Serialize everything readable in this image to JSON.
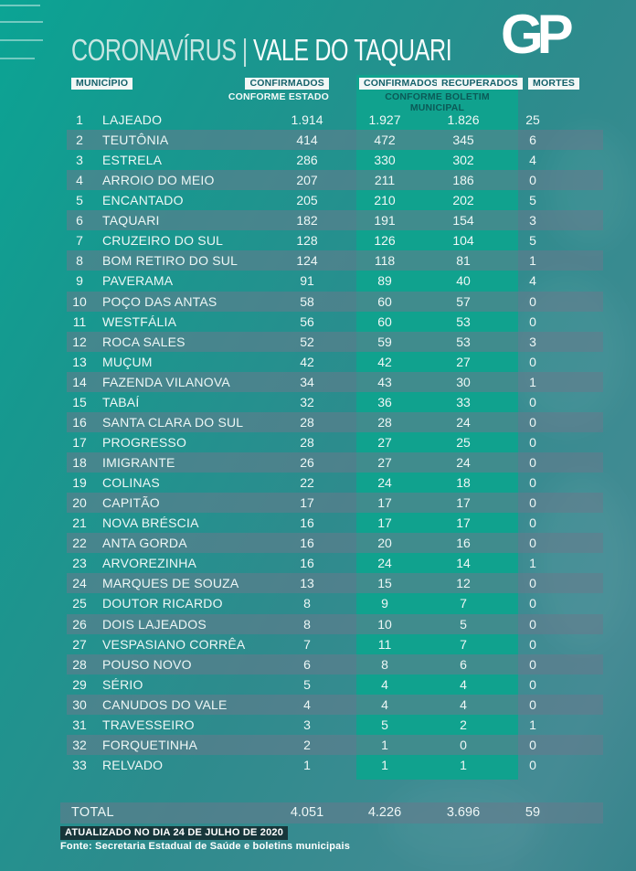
{
  "logo_text": "GP",
  "chart_data": {
    "type": "table",
    "title_parts": {
      "left": "CORONAVÍRUS",
      "separator": "|",
      "right": "VALE DO TAQUARI"
    },
    "columns": {
      "municipio": "MUNICÍPIO",
      "confirmados_estado": "CONFIRMADOS",
      "confirmados_estado_sub": "CONFORME ESTADO",
      "confirmados_municipal": "CONFIRMADOS",
      "confirmados_municipal_sub": "CONFORME BOLETIM MUNICIPAL",
      "recuperados": "RECUPERADOS",
      "mortes": "MORTES"
    },
    "rows": [
      {
        "rank": "1",
        "municipio": "LAJEADO",
        "confirmados_estado": "1.914",
        "confirmados_municipal": "1.927",
        "recuperados": "1.826",
        "mortes": "25"
      },
      {
        "rank": "2",
        "municipio": "TEUTÔNIA",
        "confirmados_estado": "414",
        "confirmados_municipal": "472",
        "recuperados": "345",
        "mortes": "6"
      },
      {
        "rank": "3",
        "municipio": "ESTRELA",
        "confirmados_estado": "286",
        "confirmados_municipal": "330",
        "recuperados": "302",
        "mortes": "4"
      },
      {
        "rank": "4",
        "municipio": "ARROIO DO MEIO",
        "confirmados_estado": "207",
        "confirmados_municipal": "211",
        "recuperados": "186",
        "mortes": "0"
      },
      {
        "rank": "5",
        "municipio": "ENCANTADO",
        "confirmados_estado": "205",
        "confirmados_municipal": "210",
        "recuperados": "202",
        "mortes": "5"
      },
      {
        "rank": "6",
        "municipio": "TAQUARI",
        "confirmados_estado": "182",
        "confirmados_municipal": "191",
        "recuperados": "154",
        "mortes": "3"
      },
      {
        "rank": "7",
        "municipio": "CRUZEIRO DO SUL",
        "confirmados_estado": "128",
        "confirmados_municipal": "126",
        "recuperados": "104",
        "mortes": "5"
      },
      {
        "rank": "8",
        "municipio": "BOM RETIRO DO SUL",
        "confirmados_estado": "124",
        "confirmados_municipal": "118",
        "recuperados": "81",
        "mortes": "1"
      },
      {
        "rank": "9",
        "municipio": "PAVERAMA",
        "confirmados_estado": "91",
        "confirmados_municipal": "89",
        "recuperados": "40",
        "mortes": "4"
      },
      {
        "rank": "10",
        "municipio": "POÇO DAS ANTAS",
        "confirmados_estado": "58",
        "confirmados_municipal": "60",
        "recuperados": "57",
        "mortes": "0"
      },
      {
        "rank": "11",
        "municipio": "WESTFÁLIA",
        "confirmados_estado": "56",
        "confirmados_municipal": "60",
        "recuperados": "53",
        "mortes": "0"
      },
      {
        "rank": "12",
        "municipio": "ROCA SALES",
        "confirmados_estado": "52",
        "confirmados_municipal": "59",
        "recuperados": "53",
        "mortes": "3"
      },
      {
        "rank": "13",
        "municipio": "MUÇUM",
        "confirmados_estado": "42",
        "confirmados_municipal": "42",
        "recuperados": "27",
        "mortes": "0"
      },
      {
        "rank": "14",
        "municipio": "FAZENDA VILANOVA",
        "confirmados_estado": "34",
        "confirmados_municipal": "43",
        "recuperados": "30",
        "mortes": "1"
      },
      {
        "rank": "15",
        "municipio": "TABAÍ",
        "confirmados_estado": "32",
        "confirmados_municipal": "36",
        "recuperados": "33",
        "mortes": "0"
      },
      {
        "rank": "16",
        "municipio": "SANTA CLARA DO SUL",
        "confirmados_estado": "28",
        "confirmados_municipal": "28",
        "recuperados": "24",
        "mortes": "0"
      },
      {
        "rank": "17",
        "municipio": "PROGRESSO",
        "confirmados_estado": "28",
        "confirmados_municipal": "27",
        "recuperados": "25",
        "mortes": "0"
      },
      {
        "rank": "18",
        "municipio": "IMIGRANTE",
        "confirmados_estado": "26",
        "confirmados_municipal": "27",
        "recuperados": "24",
        "mortes": "0"
      },
      {
        "rank": "19",
        "municipio": "COLINAS",
        "confirmados_estado": "22",
        "confirmados_municipal": "24",
        "recuperados": "18",
        "mortes": "0"
      },
      {
        "rank": "20",
        "municipio": "CAPITÃO",
        "confirmados_estado": "17",
        "confirmados_municipal": "17",
        "recuperados": "17",
        "mortes": "0"
      },
      {
        "rank": "21",
        "municipio": "NOVA BRÉSCIA",
        "confirmados_estado": "16",
        "confirmados_municipal": "17",
        "recuperados": "17",
        "mortes": "0"
      },
      {
        "rank": "22",
        "municipio": "ANTA GORDA",
        "confirmados_estado": "16",
        "confirmados_municipal": "20",
        "recuperados": "16",
        "mortes": "0"
      },
      {
        "rank": "23",
        "municipio": "ARVOREZINHA",
        "confirmados_estado": "16",
        "confirmados_municipal": "24",
        "recuperados": "14",
        "mortes": "1"
      },
      {
        "rank": "24",
        "municipio": "MARQUES DE SOUZA",
        "confirmados_estado": "13",
        "confirmados_municipal": "15",
        "recuperados": "12",
        "mortes": "0"
      },
      {
        "rank": "25",
        "municipio": "DOUTOR RICARDO",
        "confirmados_estado": "8",
        "confirmados_municipal": "9",
        "recuperados": "7",
        "mortes": "0"
      },
      {
        "rank": "26",
        "municipio": "DOIS LAJEADOS",
        "confirmados_estado": "8",
        "confirmados_municipal": "10",
        "recuperados": "5",
        "mortes": "0"
      },
      {
        "rank": "27",
        "municipio": "VESPASIANO CORRÊA",
        "confirmados_estado": "7",
        "confirmados_municipal": "11",
        "recuperados": "7",
        "mortes": "0"
      },
      {
        "rank": "28",
        "municipio": "POUSO NOVO",
        "confirmados_estado": "6",
        "confirmados_municipal": "8",
        "recuperados": "6",
        "mortes": "0"
      },
      {
        "rank": "29",
        "municipio": "SÉRIO",
        "confirmados_estado": "5",
        "confirmados_municipal": "4",
        "recuperados": "4",
        "mortes": "0"
      },
      {
        "rank": "30",
        "municipio": "CANUDOS DO VALE",
        "confirmados_estado": "4",
        "confirmados_municipal": "4",
        "recuperados": "4",
        "mortes": "0"
      },
      {
        "rank": "31",
        "municipio": "TRAVESSEIRO",
        "confirmados_estado": "3",
        "confirmados_municipal": "5",
        "recuperados": "2",
        "mortes": "1"
      },
      {
        "rank": "32",
        "municipio": "FORQUETINHA",
        "confirmados_estado": "2",
        "confirmados_municipal": "1",
        "recuperados": "0",
        "mortes": "0"
      },
      {
        "rank": "33",
        "municipio": "RELVADO",
        "confirmados_estado": "1",
        "confirmados_municipal": "1",
        "recuperados": "1",
        "mortes": "0"
      }
    ],
    "total": {
      "label": "TOTAL",
      "confirmados_estado": "4.051",
      "confirmados_municipal": "4.226",
      "recuperados": "3.696",
      "mortes": "59"
    }
  },
  "footer": {
    "updated": "ATUALIZADO NO DIA 24 DE JULHO DE 2020",
    "source": "Fonte: Secretaria Estadual de Saúde e boletins municipais"
  },
  "colors": {
    "background_top_left": "#0ba494",
    "background_bottom_right": "#37848c",
    "band_green": "#10a28e",
    "row_stripe": "rgba(104,122,140,0.55)",
    "header_chip_bg": "#f2f7f6",
    "header_chip_text": "#14616a",
    "updated_box_bg": "#17363a",
    "text_light": "#eef7f6"
  }
}
